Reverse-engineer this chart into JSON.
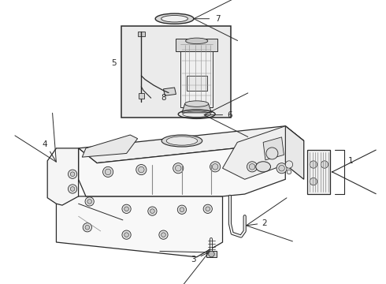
{
  "bg_color": "#ffffff",
  "lc": "#2a2a2a",
  "fill_light": "#f8f8f8",
  "fill_box": "#ebebeb",
  "fill_mid": "#e0e0e0",
  "fill_dark": "#cccccc",
  "fig_width": 4.9,
  "fig_height": 3.6,
  "dpi": 100
}
